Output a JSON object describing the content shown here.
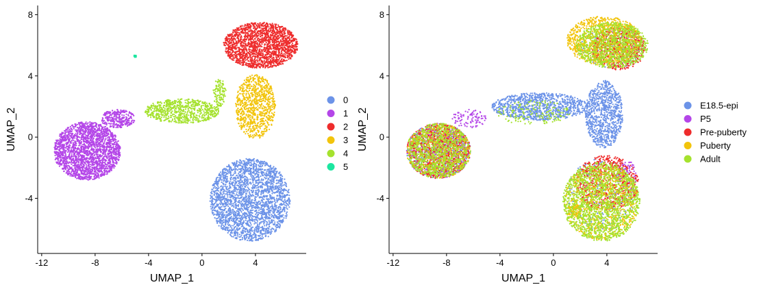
{
  "chart_data": [
    {
      "type": "scatter",
      "xlabel": "UMAP_1",
      "ylabel": "UMAP_2",
      "xlim": [
        -12.3,
        7.8
      ],
      "ylim": [
        -7.6,
        8.6
      ],
      "xticks": [
        -12,
        -8,
        -4,
        0,
        4
      ],
      "yticks": [
        -4,
        0,
        4,
        8
      ],
      "grid": false,
      "legend_position": "right",
      "series": [
        {
          "name": "0",
          "color": "#6C93E8"
        },
        {
          "name": "1",
          "color": "#B446E8"
        },
        {
          "name": "2",
          "color": "#EE2C2C"
        },
        {
          "name": "3",
          "color": "#F2C40C"
        },
        {
          "name": "4",
          "color": "#A5E22E"
        },
        {
          "name": "5",
          "color": "#1CE6A0"
        }
      ],
      "regions": [
        {
          "series": "0",
          "cx": 3.6,
          "cy": -4.1,
          "rx": 3.0,
          "ry": 2.7,
          "n": 2600
        },
        {
          "series": "1",
          "cx": -8.6,
          "cy": -0.9,
          "rx": 2.5,
          "ry": 1.9,
          "n": 2300
        },
        {
          "series": "1",
          "cx": -6.3,
          "cy": 1.2,
          "rx": 1.3,
          "ry": 0.6,
          "n": 300
        },
        {
          "series": "2",
          "cx": 4.4,
          "cy": 6.0,
          "rx": 2.8,
          "ry": 1.5,
          "n": 1900
        },
        {
          "series": "3",
          "cx": 4.0,
          "cy": 2.0,
          "rx": 1.5,
          "ry": 2.1,
          "n": 900
        },
        {
          "series": "4",
          "cx": -1.5,
          "cy": 1.7,
          "rx": 2.8,
          "ry": 0.8,
          "n": 750
        },
        {
          "series": "4",
          "cx": 1.3,
          "cy": 2.9,
          "rx": 0.5,
          "ry": 0.9,
          "n": 120
        },
        {
          "series": "5",
          "cx": -5.0,
          "cy": 5.3,
          "rx": 0.1,
          "ry": 0.1,
          "n": 12
        }
      ]
    },
    {
      "type": "scatter",
      "xlabel": "UMAP_1",
      "ylabel": "UMAP_2",
      "xlim": [
        -12.3,
        7.8
      ],
      "ylim": [
        -7.6,
        8.6
      ],
      "xticks": [
        -12,
        -8,
        -4,
        0,
        4
      ],
      "yticks": [
        -4,
        0,
        4,
        8
      ],
      "grid": false,
      "legend_position": "right",
      "series": [
        {
          "name": "E18.5-epi",
          "color": "#6C93E8"
        },
        {
          "name": "P5",
          "color": "#B446E8"
        },
        {
          "name": "Pre-puberty",
          "color": "#EE2C2C"
        },
        {
          "name": "Puberty",
          "color": "#F2C40C"
        },
        {
          "name": "Adult",
          "color": "#A5E22E"
        }
      ],
      "regions": [
        {
          "series": "E18.5-epi",
          "cx": -1.0,
          "cy": 2.0,
          "rx": 3.6,
          "ry": 0.9,
          "n": 1000
        },
        {
          "series": "E18.5-epi",
          "cx": 3.8,
          "cy": 1.5,
          "rx": 1.4,
          "ry": 2.2,
          "n": 900
        },
        {
          "series": "E18.5-epi",
          "cx": -8.6,
          "cy": -0.9,
          "rx": 2.4,
          "ry": 1.8,
          "n": 450
        },
        {
          "series": "E18.5-epi",
          "cx": 4.4,
          "cy": 5.8,
          "rx": 2.4,
          "ry": 1.3,
          "n": 150
        },
        {
          "series": "E18.5-epi",
          "cx": 3.6,
          "cy": -3.8,
          "rx": 2.6,
          "ry": 2.4,
          "n": 200
        },
        {
          "series": "P5",
          "cx": -8.6,
          "cy": -0.9,
          "rx": 2.4,
          "ry": 1.8,
          "n": 500
        },
        {
          "series": "P5",
          "cx": -6.3,
          "cy": 1.2,
          "rx": 1.3,
          "ry": 0.6,
          "n": 100
        },
        {
          "series": "P5",
          "cx": 5.5,
          "cy": -2.5,
          "rx": 0.8,
          "ry": 1.0,
          "n": 80
        },
        {
          "series": "Pre-puberty",
          "cx": -8.6,
          "cy": -0.9,
          "rx": 2.4,
          "ry": 1.8,
          "n": 900
        },
        {
          "series": "Pre-puberty",
          "cx": 4.9,
          "cy": 5.8,
          "rx": 2.0,
          "ry": 1.4,
          "n": 650
        },
        {
          "series": "Pre-puberty",
          "cx": 4.0,
          "cy": -3.0,
          "rx": 2.4,
          "ry": 1.8,
          "n": 650
        },
        {
          "series": "Puberty",
          "cx": -8.6,
          "cy": -0.9,
          "rx": 2.4,
          "ry": 1.8,
          "n": 450
        },
        {
          "series": "Puberty",
          "cx": 3.8,
          "cy": 6.3,
          "rx": 2.8,
          "ry": 1.6,
          "n": 1000
        },
        {
          "series": "Puberty",
          "cx": 3.6,
          "cy": -4.2,
          "rx": 2.8,
          "ry": 2.5,
          "n": 800
        },
        {
          "series": "Puberty",
          "cx": 1.6,
          "cy": -4.8,
          "rx": 0.5,
          "ry": 0.4,
          "n": 90
        },
        {
          "series": "Adult",
          "cx": -8.6,
          "cy": -0.9,
          "rx": 2.4,
          "ry": 1.8,
          "n": 1000
        },
        {
          "series": "Adult",
          "cx": 4.4,
          "cy": 6.0,
          "rx": 2.7,
          "ry": 1.5,
          "n": 1000
        },
        {
          "series": "Adult",
          "cx": 3.6,
          "cy": -4.2,
          "rx": 2.9,
          "ry": 2.6,
          "n": 1600
        },
        {
          "series": "Adult",
          "cx": -1.5,
          "cy": 1.6,
          "rx": 2.8,
          "ry": 0.8,
          "n": 150
        }
      ]
    }
  ]
}
